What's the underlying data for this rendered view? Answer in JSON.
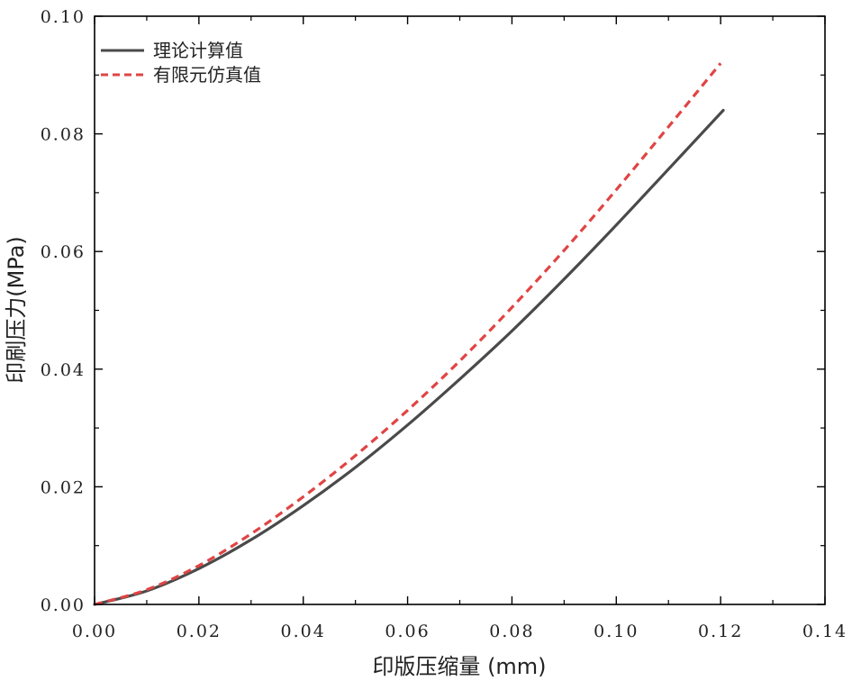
{
  "chart_data": {
    "type": "line",
    "title": "",
    "xlabel": "印版压缩量 (mm)",
    "ylabel": "印刷压力(MPa)",
    "xlim": [
      0,
      0.14
    ],
    "ylim": [
      0,
      0.1
    ],
    "x_ticks": [
      0.0,
      0.02,
      0.04,
      0.06,
      0.08,
      0.1,
      0.12,
      0.14
    ],
    "y_ticks": [
      0.0,
      0.02,
      0.04,
      0.06,
      0.08,
      0.1
    ],
    "x_tick_labels": [
      "0.00",
      "0.02",
      "0.04",
      "0.06",
      "0.08",
      "0.10",
      "0.12",
      "0.14"
    ],
    "y_tick_labels": [
      "0.00",
      "0.02",
      "0.04",
      "0.06",
      "0.08",
      "0.10"
    ],
    "grid": false,
    "legend_position": "top-left",
    "series": [
      {
        "name": "理论计算值",
        "style": "solid",
        "color": "#4a4a4a",
        "x": [
          0.0,
          0.01,
          0.02,
          0.03,
          0.04,
          0.05,
          0.06,
          0.07,
          0.08,
          0.09,
          0.1,
          0.11,
          0.1205
        ],
        "y": [
          0.0,
          0.0023,
          0.0061,
          0.011,
          0.0168,
          0.0233,
          0.0305,
          0.0383,
          0.0465,
          0.0553,
          0.0645,
          0.074,
          0.084
        ]
      },
      {
        "name": "有限元仿真值",
        "style": "dashed",
        "color": "#e04444",
        "x": [
          0.0,
          0.01,
          0.02,
          0.03,
          0.04,
          0.05,
          0.06,
          0.07,
          0.08,
          0.09,
          0.1,
          0.11,
          0.12
        ],
        "y": [
          0.0,
          0.0025,
          0.0066,
          0.012,
          0.0183,
          0.0253,
          0.033,
          0.0414,
          0.0505,
          0.0602,
          0.0705,
          0.0812,
          0.092
        ]
      }
    ]
  }
}
